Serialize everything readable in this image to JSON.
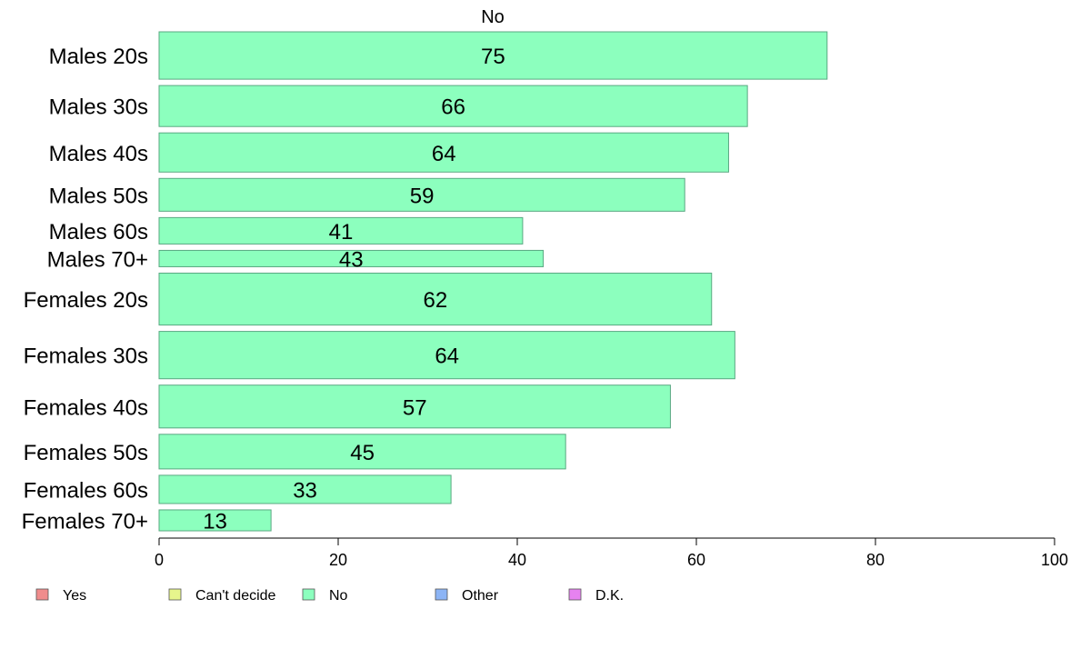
{
  "chart_data": {
    "type": "bar",
    "orientation": "horizontal",
    "title": "No",
    "xlim": [
      0,
      100
    ],
    "xticks": [
      0,
      20,
      40,
      60,
      80,
      100
    ],
    "grid": false,
    "categories": [
      "Males 20s",
      "Males 30s",
      "Males 40s",
      "Males 50s",
      "Males 60s",
      "Males 70+",
      "Females 20s",
      "Females 30s",
      "Females 40s",
      "Females 50s",
      "Females 60s",
      "Females 70+"
    ],
    "values": [
      75,
      66,
      64,
      59,
      41,
      43,
      62,
      64,
      57,
      45,
      33,
      13
    ],
    "bar_values": [
      74.6,
      65.7,
      63.6,
      58.7,
      40.6,
      42.9,
      61.7,
      64.3,
      57.1,
      45.4,
      32.6,
      12.5
    ],
    "row_weights": [
      52,
      45,
      43,
      36,
      29,
      18,
      57,
      52,
      47,
      38,
      31,
      23
    ],
    "bar_color": "#8cffbe",
    "bar_stroke": "#5aa882",
    "legend": {
      "placement": "bottom",
      "items": [
        {
          "label": "Yes",
          "color": "#f08c8c"
        },
        {
          "label": "Can't decide",
          "color": "#e6f58c"
        },
        {
          "label": "No",
          "color": "#8cffbe"
        },
        {
          "label": "Other",
          "color": "#8cb4f5"
        },
        {
          "label": "D.K.",
          "color": "#e682f0"
        }
      ]
    }
  }
}
